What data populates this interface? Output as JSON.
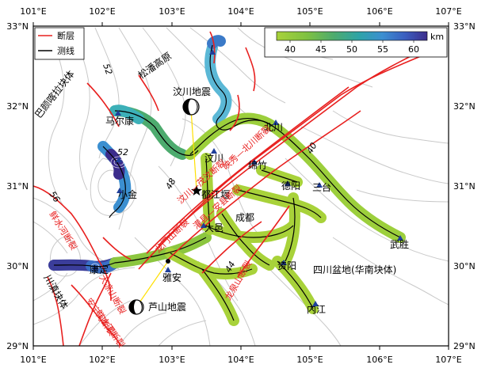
{
  "axes": {
    "top_lon_labels": [
      "101°E",
      "102°E",
      "103°E",
      "104°E",
      "105°E",
      "106°E",
      "107°E"
    ],
    "bottom_lon_labels": [
      "101°E",
      "102°E",
      "103°E",
      "104°E",
      "105°E",
      "106°E",
      "107°E"
    ],
    "left_lat_labels": [
      "33°N",
      "32°N",
      "31°N",
      "30°N",
      "29°N"
    ],
    "right_lat_labels": [
      "33°N",
      "32°N",
      "31°N",
      "30°N",
      "29°N"
    ]
  },
  "legend": {
    "fault_label": "断层",
    "profile_label": "测线",
    "colors": {
      "fault": "#e8201f",
      "profile": "#000000"
    }
  },
  "colorbar": {
    "unit": "km",
    "tick_labels": [
      "40",
      "45",
      "50",
      "55",
      "60"
    ],
    "range": [
      37,
      63
    ],
    "stops": [
      "#a8d23a",
      "#7fc142",
      "#4dab6e",
      "#2ea3a8",
      "#3c8fd0",
      "#3b5fc0",
      "#3c2d8c"
    ]
  },
  "regions": {
    "songpan": "松潘高原",
    "bayan": "巴颜喀拉块体",
    "sichuan_basin": "四川盆地(华南块体)",
    "chuandian": "川滇块体"
  },
  "contour_labels": [
    "52",
    "56",
    "48",
    "44",
    "40",
    "52"
  ],
  "cities": [
    "马尔康",
    "小金",
    "汶川",
    "都江堰",
    "北川",
    "绵竹",
    "德阳",
    "三台",
    "成都",
    "大邑",
    "雅安",
    "康定",
    "资阳",
    "内江",
    "武胜"
  ],
  "earthquakes": [
    "汶川地震",
    "芦山地震"
  ],
  "fault_labels": [
    "汶川—茂汶断裂",
    "映秀—北川断裂",
    "灌县—安县断裂",
    "鲜水河断裂",
    "安宁河断裂",
    "大凉山断裂",
    "龙泉山断裂",
    "龙门山断裂",
    "鲜水河断裂"
  ],
  "icons": {
    "station": "triangle-station-icon",
    "beachball": "beachball-icon",
    "epicenter": "star-epicenter-icon"
  }
}
